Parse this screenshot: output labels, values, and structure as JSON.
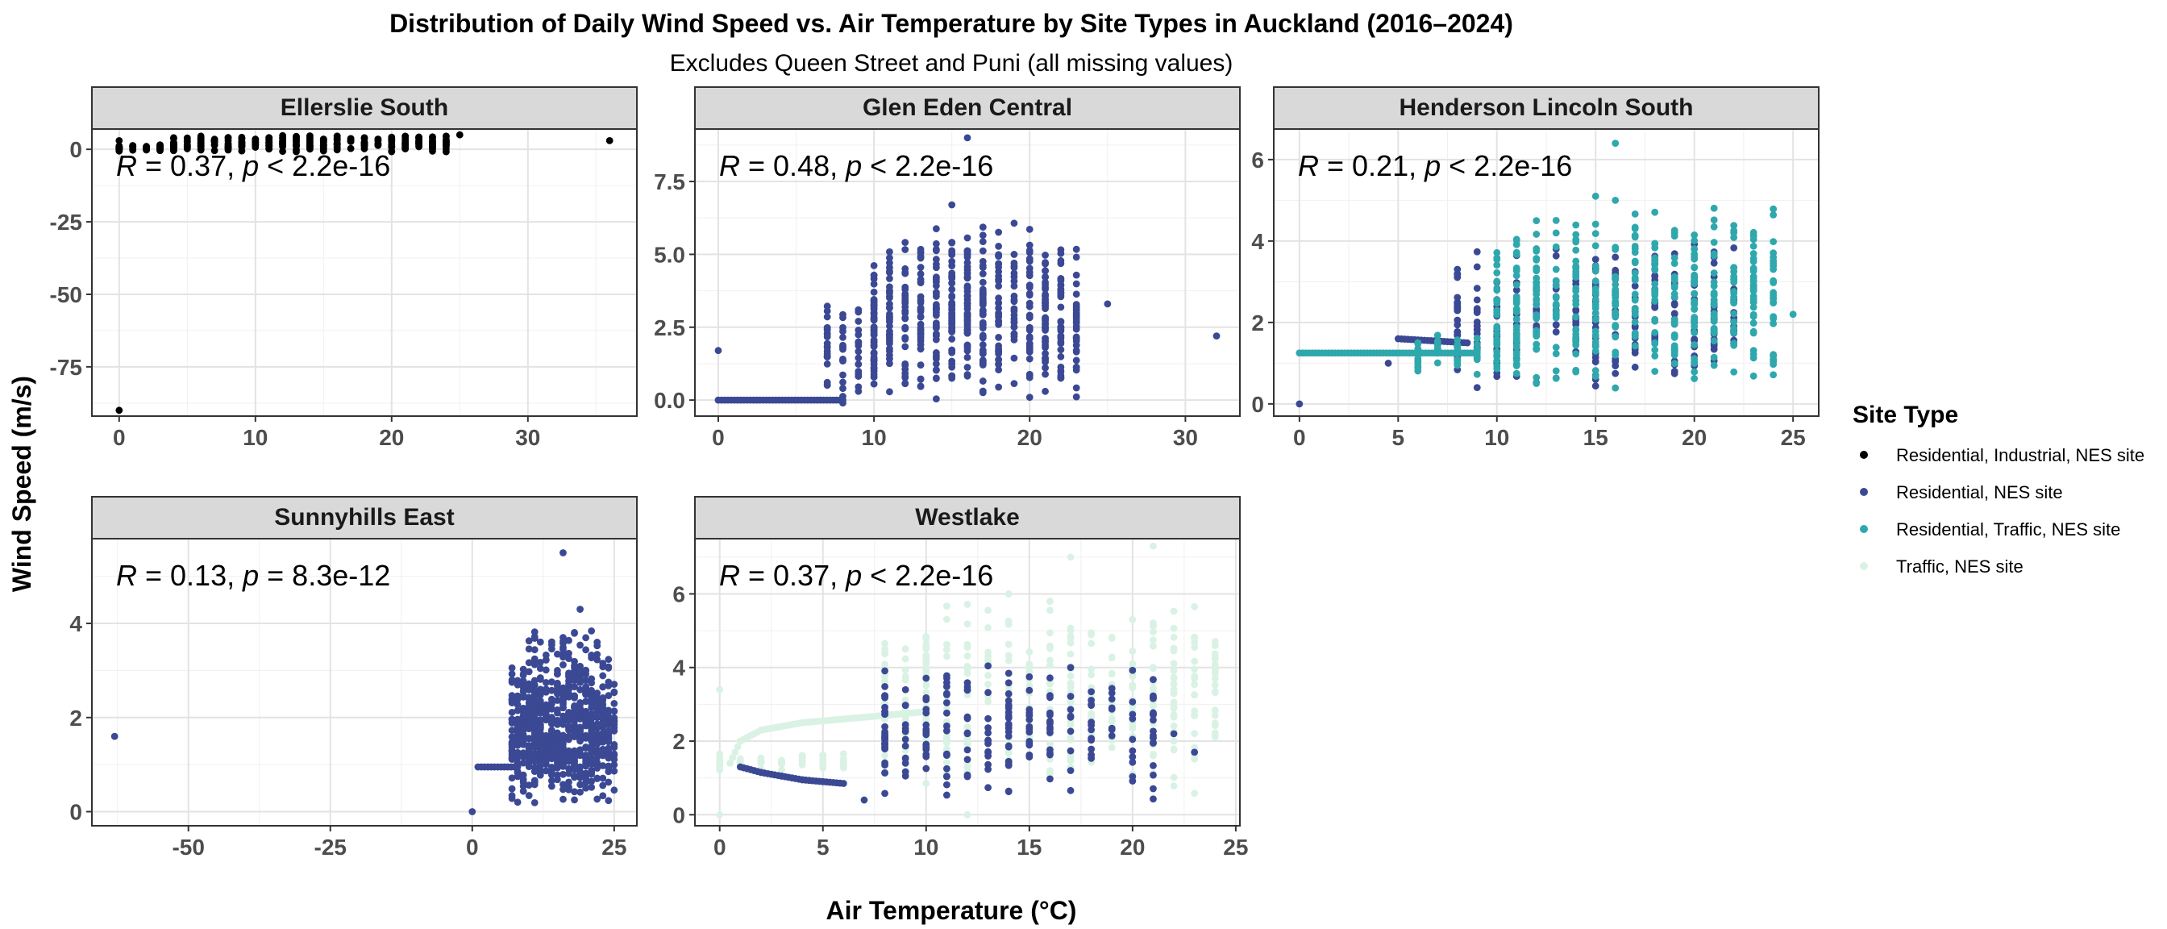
{
  "chart_data": {
    "type": "scatter",
    "title": "Distribution of Daily Wind Speed vs. Air Temperature by Site Types in Auckland (2016–2024)",
    "subtitle": "Excludes Queen Street and Puni (all missing values)",
    "xlabel": "Air Temperature (°C)",
    "ylabel": "Wind Speed (m/s)",
    "grid": true,
    "legend": {
      "title": "Site Type",
      "position": "right",
      "entries": [
        {
          "label": "Residential, Industrial, NES site",
          "color": "#000000"
        },
        {
          "label": "Residential, NES site",
          "color": "#3b4994"
        },
        {
          "label": "Residential, Traffic, NES site",
          "color": "#2fa8ad"
        },
        {
          "label": "Traffic, NES site",
          "color": "#d9f2e4"
        }
      ]
    },
    "panels": [
      {
        "site": "Ellerslie South",
        "xlim": [
          -2,
          38
        ],
        "ylim": [
          -92,
          7
        ],
        "xticks": [
          0,
          10,
          20,
          30
        ],
        "xtick_labels": [
          "0",
          "10",
          "20",
          "30"
        ],
        "yticks": [
          -75,
          -50,
          -25,
          0
        ],
        "ytick_labels": [
          "-75",
          "-50",
          "-25",
          "0"
        ],
        "show_x_axis": true,
        "annotation": {
          "r": "0.37",
          "p_op": "<",
          "p": "2.2e-16"
        },
        "series": [
          {
            "name": "Residential, Industrial, NES site",
            "points": [
              [
                0,
                -90
              ],
              [
                36,
                3
              ],
              [
                25,
                5
              ],
              [
                0,
                3
              ],
              [
                2,
                1
              ],
              [
                4,
                2
              ],
              [
                6,
                2.5
              ],
              [
                8,
                3
              ],
              [
                10,
                3.5
              ],
              [
                12,
                4
              ],
              [
                14,
                4
              ],
              [
                16,
                4.5
              ],
              [
                18,
                4
              ],
              [
                20,
                3.5
              ],
              [
                22,
                3
              ],
              [
                24,
                3
              ]
            ],
            "clusters": [
              {
                "x": [
                  0,
                  4
                ],
                "y": [
                  -1,
                  2
                ],
                "n": 60
              },
              {
                "x": [
                  4,
                  24
                ],
                "y": [
                  -1,
                  5
                ],
                "n": 260
              }
            ]
          }
        ]
      },
      {
        "site": "Glen Eden Central",
        "xlim": [
          -1.5,
          33.5
        ],
        "ylim": [
          -0.55,
          9.3
        ],
        "xticks": [
          0,
          10,
          20,
          30
        ],
        "xtick_labels": [
          "0",
          "10",
          "20",
          "30"
        ],
        "yticks": [
          0,
          2.5,
          5,
          7.5
        ],
        "ytick_labels": [
          "0.0",
          "2.5",
          "5.0",
          "7.5"
        ],
        "show_x_axis": true,
        "annotation": {
          "r": "0.48",
          "p_op": "<",
          "p": "2.2e-16"
        },
        "series": [
          {
            "name": "Residential, NES site",
            "points": [
              [
                0,
                1.7
              ],
              [
                16,
                9
              ],
              [
                32,
                2.2
              ],
              [
                25,
                3.3
              ],
              [
                15,
                6.7
              ],
              [
                8,
                -0.1
              ],
              [
                9,
                0.3
              ]
            ],
            "line": [
              [
                0,
                0
              ],
              [
                8,
                0
              ]
            ],
            "clusters": [
              {
                "x": [
                  7,
                  10
                ],
                "y": [
                  0,
                  3.5
                ],
                "n": 80
              },
              {
                "x": [
                  10,
                  23
                ],
                "y": [
                  0,
                  5.5
                ],
                "n": 520
              },
              {
                "x": [
                  12,
                  20
                ],
                "y": [
                  4,
                  6.2
                ],
                "n": 40
              }
            ]
          }
        ]
      },
      {
        "site": "Henderson Lincoln South",
        "xlim": [
          -1.3,
          26.3
        ],
        "ylim": [
          -0.3,
          6.75
        ],
        "xticks": [
          0,
          5,
          10,
          15,
          20,
          25
        ],
        "xtick_labels": [
          "0",
          "5",
          "10",
          "15",
          "20",
          "25"
        ],
        "yticks": [
          0,
          2,
          4,
          6
        ],
        "ytick_labels": [
          "0",
          "2",
          "4",
          "6"
        ],
        "show_x_axis": true,
        "annotation": {
          "r": "0.21",
          "p_op": "<",
          "p": "2.2e-16"
        },
        "series": [
          {
            "name": "Residential, NES site",
            "points": [
              [
                0,
                0
              ],
              [
                4.5,
                1
              ],
              [
                9,
                0.4
              ]
            ],
            "line": [
              [
                5,
                1.6
              ],
              [
                8.5,
                1.5
              ]
            ],
            "clusters": [
              {
                "x": [
                  8,
                  22
                ],
                "y": [
                  0.4,
                  4
                ],
                "n": 300
              }
            ]
          },
          {
            "name": "Residential, Traffic, NES site",
            "points": [
              [
                16,
                6.4
              ],
              [
                25,
                2.2
              ],
              [
                24,
                2.5
              ],
              [
                15,
                5.1
              ],
              [
                16,
                5
              ]
            ],
            "line": [
              [
                0,
                1.25
              ],
              [
                9,
                1.25
              ]
            ],
            "clusters": [
              {
                "x": [
                  6,
                  11
                ],
                "y": [
                  0.5,
                  2
                ],
                "n": 60
              },
              {
                "x": [
                  10,
                  24
                ],
                "y": [
                  0.3,
                  4.9
                ],
                "n": 420
              }
            ]
          }
        ]
      },
      {
        "site": "Sunnyhills East",
        "xlim": [
          -67,
          29
        ],
        "ylim": [
          -0.3,
          5.8
        ],
        "xticks": [
          -50,
          -25,
          0,
          25
        ],
        "xtick_labels": [
          "-50",
          "-25",
          "0",
          "25"
        ],
        "yticks": [
          0,
          2,
          4
        ],
        "ytick_labels": [
          "0",
          "2",
          "4"
        ],
        "show_x_axis": true,
        "annotation": {
          "r": "0.13",
          "p_op": "=",
          "p": "8.3e-12"
        },
        "series": [
          {
            "name": "Residential, NES site",
            "points": [
              [
                -63,
                1.6
              ],
              [
                0,
                0
              ],
              [
                16,
                5.5
              ],
              [
                19,
                4.3
              ]
            ],
            "line": [
              [
                1,
                0.95
              ],
              [
                8,
                0.95
              ]
            ],
            "clusters": [
              {
                "x": [
                  7,
                  25
                ],
                "y": [
                  0.1,
                  3.3
                ],
                "n": 700
              },
              {
                "x": [
                  10,
                  22
                ],
                "y": [
                  3,
                  4
                ],
                "n": 40
              }
            ]
          }
        ]
      },
      {
        "site": "Westlake",
        "xlim": [
          -1.2,
          25.2
        ],
        "ylim": [
          -0.3,
          7.5
        ],
        "xticks": [
          0,
          5,
          10,
          15,
          20,
          25
        ],
        "xtick_labels": [
          "0",
          "5",
          "10",
          "15",
          "20",
          "25"
        ],
        "yticks": [
          0,
          2,
          4,
          6
        ],
        "ytick_labels": [
          "0",
          "2",
          "4",
          "6"
        ],
        "show_x_axis": true,
        "annotation": {
          "r": "0.37",
          "p_op": "<",
          "p": "2.2e-16"
        },
        "series": [
          {
            "name": "Traffic, NES site",
            "points": [
              [
                0,
                3.4
              ],
              [
                0,
                0
              ],
              [
                12,
                0
              ],
              [
                21,
                7.3
              ],
              [
                17,
                7
              ],
              [
                14,
                6
              ],
              [
                16,
                5.8
              ]
            ],
            "line": [
              [
                0.5,
                1.4
              ],
              [
                1,
                2
              ],
              [
                2,
                2.3
              ],
              [
                4,
                2.5
              ],
              [
                6,
                2.6
              ],
              [
                8,
                2.7
              ],
              [
                10,
                2.8
              ]
            ],
            "clusters": [
              {
                "x": [
                  0,
                  6
                ],
                "y": [
                  1.2,
                  1.7
                ],
                "n": 60
              },
              {
                "x": [
                  8,
                  24
                ],
                "y": [
                  0.5,
                  6
                ],
                "n": 420
              }
            ]
          },
          {
            "name": "Residential, NES site",
            "points": [
              [
                7,
                0.4
              ],
              [
                22,
                2.2
              ],
              [
                23,
                1.7
              ]
            ],
            "line": [
              [
                1,
                1.3
              ],
              [
                2,
                1.15
              ],
              [
                3,
                1.05
              ],
              [
                4,
                0.95
              ],
              [
                5,
                0.9
              ],
              [
                6,
                0.85
              ]
            ],
            "clusters": [
              {
                "x": [
                  8,
                  21
                ],
                "y": [
                  0.3,
                  4.2
                ],
                "n": 220
              }
            ]
          }
        ]
      }
    ]
  }
}
